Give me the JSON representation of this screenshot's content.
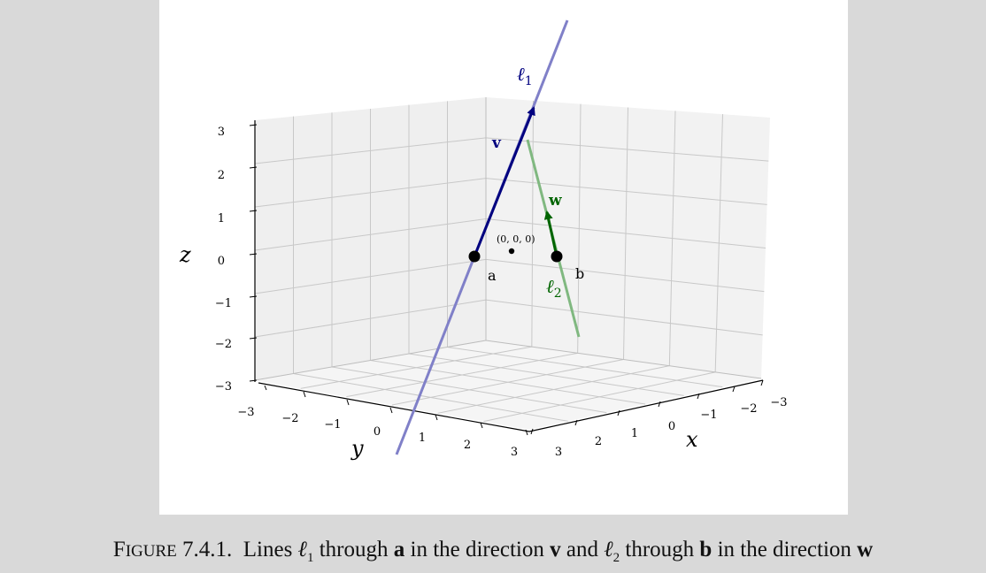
{
  "figure": {
    "axes": {
      "z_label": "z",
      "y_label": "y",
      "x_label": "x",
      "z_ticks": [
        "3",
        "2",
        "1",
        "0",
        "−1",
        "−2",
        "−3"
      ],
      "y_ticks": [
        "−3",
        "−2",
        "−1",
        "0",
        "1",
        "2",
        "3"
      ],
      "x_ticks": [
        "3",
        "2",
        "1",
        "0",
        "−1",
        "−2",
        "−3"
      ]
    },
    "labels": {
      "l1": "ℓ1",
      "l2": "ℓ2",
      "v": "v",
      "w": "w",
      "a": "a",
      "b": "b",
      "origin": "(0, 0, 0)"
    },
    "colors": {
      "line1": "#8080c8",
      "vector_v": "#00007f",
      "line2": "#80b880",
      "vector_w": "#006400"
    }
  },
  "caption": {
    "fig_word_first": "F",
    "fig_word_rest": "IGURE",
    "number": "7.4.1.",
    "text_1": "Lines",
    "l1_sym": "ℓ",
    "l1_sub": "1",
    "text_2": "through",
    "a": "a",
    "text_3": "in the direction",
    "v": "v",
    "text_4": "and",
    "l2_sym": "ℓ",
    "l2_sub": "2",
    "text_5": "through",
    "b": "b",
    "text_6": "in the direction",
    "w": "w"
  }
}
